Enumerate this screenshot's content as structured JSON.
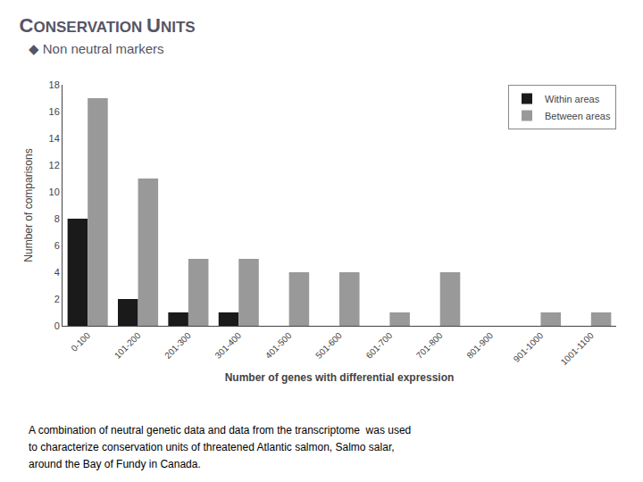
{
  "chart_data": {
    "type": "bar",
    "title": "CONSERVATION UNITS",
    "subtitle": "◆ Non neutral markers",
    "categories": [
      "0-100",
      "101-200",
      "201-300",
      "301-400",
      "401-500",
      "501-600",
      "601-700",
      "701-800",
      "801-900",
      "901-1000",
      "1001-1100"
    ],
    "series": [
      {
        "name": "Within areas",
        "color": "#1a1a1a",
        "values": [
          8,
          2,
          1,
          1,
          0,
          0,
          0,
          0,
          0,
          0,
          0
        ]
      },
      {
        "name": "Between areas",
        "color": "#999999",
        "values": [
          17,
          11,
          5,
          5,
          4,
          4,
          1,
          4,
          0,
          1,
          1
        ]
      }
    ],
    "x_label": "Number of genes with differential expression",
    "y_label": "Number of comparisons",
    "ylim": [
      0,
      18
    ],
    "yticks": [
      0,
      2,
      4,
      6,
      8,
      10,
      12,
      14,
      16,
      18
    ],
    "legend": "upper right",
    "grid": false,
    "annotations": [
      "A combination of neutral genetic data and data from the transcriptome  was used",
      "to characterize conservation units of threatened Atlantic salmon, Salmo salar,",
      "around the Bay of Fundy in Canada."
    ]
  }
}
